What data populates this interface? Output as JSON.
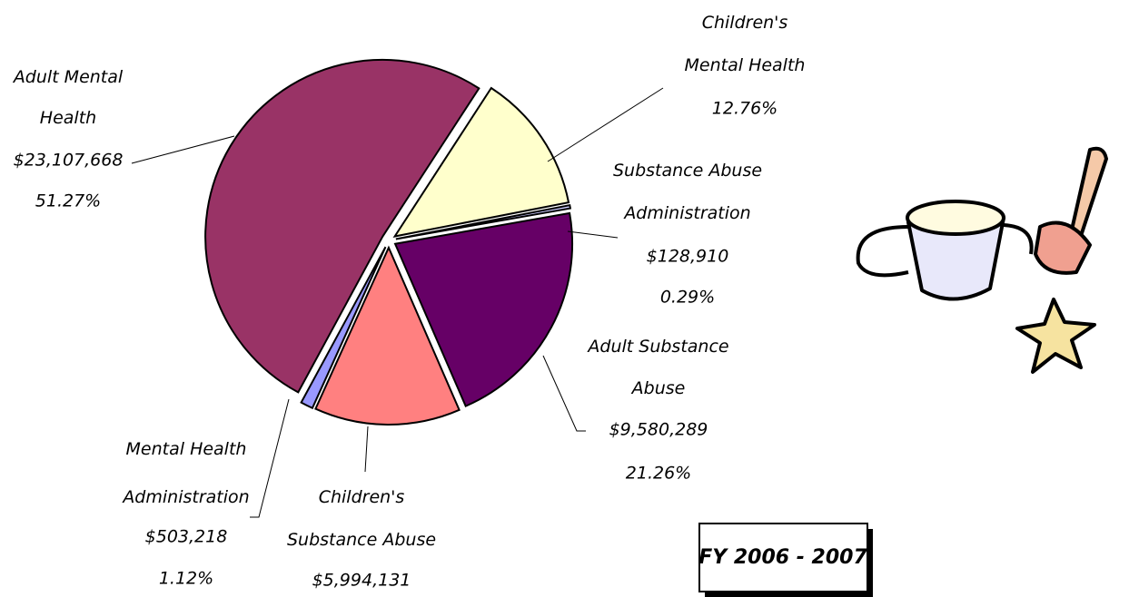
{
  "chart_data": {
    "type": "pie",
    "categories": [
      "Adult Mental Health",
      "Children's Mental Health",
      "Substance Abuse Administration",
      "Adult Substance Abuse",
      "Children's Substance Abuse",
      "Mental Health Administration"
    ],
    "values": [
      51.27,
      12.76,
      0.29,
      21.26,
      13.3,
      1.12
    ],
    "value_labels": [
      "51.27%",
      "12.76%",
      "0.29%",
      "21.26%",
      null,
      "1.12%"
    ],
    "amount_labels": [
      "$23,107,668",
      null,
      "$128,910",
      "$9,580,289",
      "$5,994,131",
      "$503,218"
    ],
    "colors": [
      "#993366",
      "#ffffcc",
      "#ccccff",
      "#660066",
      "#ff8080",
      "#9999ff"
    ],
    "note": "FY 2006 - 2007"
  }
}
